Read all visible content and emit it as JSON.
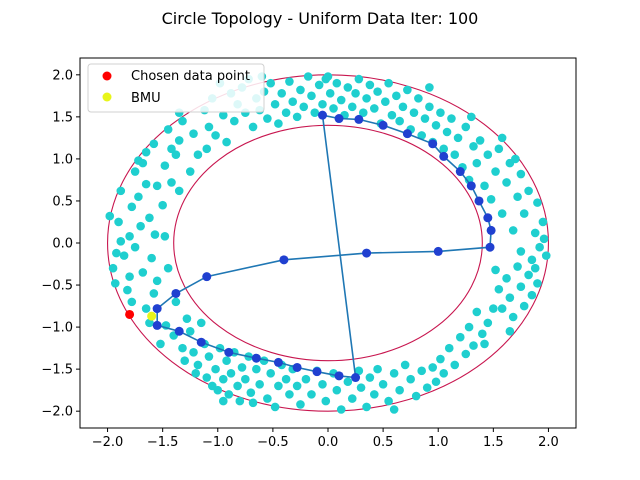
{
  "chart_data": {
    "type": "scatter",
    "title": "Circle Topology - Uniform Data Iter: 100",
    "xlabel": "",
    "ylabel": "",
    "xlim": [
      -2.25,
      2.25
    ],
    "ylim": [
      -2.2,
      2.2
    ],
    "xticks": [
      "−2.0",
      "−1.5",
      "−1.0",
      "−0.5",
      "0.0",
      "0.5",
      "1.0",
      "1.5",
      "2.0"
    ],
    "yticks": [
      "2.0",
      "1.5",
      "1.0",
      "0.5",
      "0.0",
      "−0.5",
      "−1.0",
      "−1.5",
      "−2.0"
    ],
    "xtick_values": [
      -2.0,
      -1.5,
      -1.0,
      -0.5,
      0.0,
      0.5,
      1.0,
      1.5,
      2.0
    ],
    "ytick_values": [
      2.0,
      1.5,
      1.0,
      0.5,
      0.0,
      -0.5,
      -1.0,
      -1.5,
      -2.0
    ],
    "grid": false,
    "legend": {
      "position": "top-left",
      "entries": [
        {
          "label": "Chosen data point",
          "color": "#ff0000"
        },
        {
          "label": "BMU",
          "color": "#e8f51a"
        }
      ]
    },
    "colors": {
      "data": "#1fcfcf",
      "neurons": "#2040d0",
      "network_line": "#1f77b4",
      "boundary": "#c8164f"
    },
    "boundaries": [
      {
        "name": "outer",
        "center": [
          0,
          0
        ],
        "rx": 2.0,
        "ry": 2.0
      },
      {
        "name": "inner",
        "center": [
          0,
          0
        ],
        "rx": 1.4,
        "ry": 1.4
      }
    ],
    "chosen_point": [
      -1.8,
      -0.85
    ],
    "bmu": [
      -1.6,
      -0.87
    ],
    "data_points": [
      [
        -1.98,
        0.32
      ],
      [
        -1.95,
        -0.3
      ],
      [
        -1.93,
        -0.48
      ],
      [
        -1.9,
        0.25
      ],
      [
        -1.88,
        0.02
      ],
      [
        -1.85,
        -0.15
      ],
      [
        -1.82,
        -0.56
      ],
      [
        -1.8,
        0.08
      ],
      [
        -1.78,
        -0.7
      ],
      [
        -1.78,
        0.43
      ],
      [
        -1.75,
        -0.05
      ],
      [
        -1.72,
        0.55
      ],
      [
        -1.7,
        0.2
      ],
      [
        -1.68,
        -0.35
      ],
      [
        -1.65,
        0.7
      ],
      [
        -1.65,
        -0.78
      ],
      [
        -1.62,
        0.3
      ],
      [
        -1.6,
        -0.18
      ],
      [
        -1.58,
        -0.6
      ],
      [
        -1.57,
        0.1
      ],
      [
        -1.55,
        0.68
      ],
      [
        -1.55,
        -0.45
      ],
      [
        -1.52,
        -1.2
      ],
      [
        -1.5,
        0.45
      ],
      [
        -1.48,
        0.08
      ],
      [
        -1.47,
        -0.98
      ],
      [
        -1.45,
        -0.3
      ],
      [
        -1.42,
        0.72
      ],
      [
        -1.4,
        -1.1
      ],
      [
        -1.38,
        -0.7
      ],
      [
        -1.35,
        1.22
      ],
      [
        -1.35,
        0.62
      ],
      [
        -1.32,
        -1.25
      ],
      [
        -1.3,
        -1.4
      ],
      [
        -1.28,
        -0.9
      ],
      [
        -1.25,
        -1.05
      ],
      [
        -1.22,
        -1.3
      ],
      [
        -1.2,
        -1.55
      ],
      [
        -1.18,
        -1.45
      ],
      [
        -1.15,
        -0.95
      ],
      [
        -1.12,
        -1.2
      ],
      [
        -1.1,
        -1.6
      ],
      [
        -1.08,
        -1.35
      ],
      [
        -1.05,
        -1.7
      ],
      [
        -1.02,
        -1.5
      ],
      [
        -1.0,
        -1.75
      ],
      [
        -0.98,
        -1.25
      ],
      [
        -0.95,
        -1.62
      ],
      [
        -0.92,
        -1.4
      ],
      [
        -0.9,
        -1.8
      ],
      [
        -0.88,
        -1.55
      ],
      [
        -0.85,
        -1.3
      ],
      [
        -0.82,
        -1.7
      ],
      [
        -0.8,
        -1.88
      ],
      [
        -0.78,
        -1.48
      ],
      [
        -0.75,
        -1.62
      ],
      [
        -0.72,
        -1.35
      ],
      [
        -0.7,
        -1.78
      ],
      [
        -0.68,
        -1.9
      ],
      [
        -0.65,
        -1.5
      ],
      [
        -0.62,
        -1.68
      ],
      [
        -0.58,
        -1.4
      ],
      [
        -0.55,
        -1.85
      ],
      [
        -0.52,
        -1.55
      ],
      [
        -0.48,
        -1.95
      ],
      [
        -0.45,
        -1.7
      ],
      [
        -0.42,
        -1.45
      ],
      [
        -0.38,
        -1.62
      ],
      [
        -0.35,
        -1.8
      ],
      [
        -0.32,
        -1.5
      ],
      [
        -1.72,
        0.98
      ],
      [
        -1.68,
        0.95
      ],
      [
        -1.58,
        1.18
      ],
      [
        -1.48,
        0.92
      ],
      [
        -1.45,
        1.35
      ],
      [
        -1.38,
        1.05
      ],
      [
        -1.35,
        1.55
      ],
      [
        -1.32,
        1.45
      ],
      [
        -1.25,
        0.85
      ],
      [
        -1.22,
        1.3
      ],
      [
        -1.18,
        1.05
      ],
      [
        -1.12,
        1.58
      ],
      [
        -1.1,
        1.12
      ],
      [
        -1.08,
        1.38
      ],
      [
        -1.05,
        1.72
      ],
      [
        -1.02,
        1.28
      ],
      [
        -0.98,
        1.9
      ],
      [
        -0.95,
        1.52
      ],
      [
        -0.92,
        1.2
      ],
      [
        -0.88,
        1.78
      ],
      [
        -0.85,
        1.45
      ],
      [
        -0.82,
        1.65
      ],
      [
        -0.78,
        1.85
      ],
      [
        -0.75,
        1.55
      ],
      [
        -0.72,
        1.95
      ],
      [
        -0.68,
        1.38
      ],
      [
        -0.65,
        1.72
      ],
      [
        -0.62,
        1.58
      ],
      [
        -0.58,
        1.8
      ],
      [
        -0.55,
        1.48
      ],
      [
        -0.52,
        1.9
      ],
      [
        -0.48,
        1.65
      ],
      [
        -0.45,
        1.42
      ],
      [
        -0.42,
        1.78
      ],
      [
        -0.38,
        1.55
      ],
      [
        -0.35,
        1.92
      ],
      [
        -0.32,
        1.68
      ],
      [
        -0.28,
        1.5
      ],
      [
        -0.25,
        1.82
      ],
      [
        -0.22,
        1.62
      ],
      [
        -0.18,
        1.98
      ],
      [
        -0.15,
        1.75
      ],
      [
        -0.12,
        1.55
      ],
      [
        -0.08,
        1.88
      ],
      [
        -0.05,
        1.65
      ],
      [
        -0.02,
        1.95
      ],
      [
        0.02,
        1.78
      ],
      [
        0.05,
        1.6
      ],
      [
        0.08,
        1.9
      ],
      [
        0.12,
        1.7
      ],
      [
        0.15,
        1.52
      ],
      [
        0.18,
        1.85
      ],
      [
        0.22,
        1.62
      ],
      [
        0.25,
        1.78
      ],
      [
        0.28,
        1.95
      ],
      [
        0.32,
        1.55
      ],
      [
        0.35,
        1.72
      ],
      [
        0.38,
        1.88
      ],
      [
        0.42,
        1.6
      ],
      [
        0.45,
        1.8
      ],
      [
        0.48,
        1.42
      ],
      [
        0.52,
        1.68
      ],
      [
        0.55,
        1.9
      ],
      [
        0.58,
        1.52
      ],
      [
        0.62,
        1.75
      ],
      [
        0.65,
        1.45
      ],
      [
        0.68,
        1.62
      ],
      [
        0.72,
        1.82
      ],
      [
        0.75,
        1.35
      ],
      [
        0.78,
        1.55
      ],
      [
        0.82,
        1.72
      ],
      [
        0.85,
        1.28
      ],
      [
        0.88,
        1.48
      ],
      [
        0.92,
        1.62
      ],
      [
        0.95,
        1.2
      ],
      [
        0.98,
        1.4
      ],
      [
        1.02,
        1.55
      ],
      [
        1.05,
        1.12
      ],
      [
        1.08,
        1.32
      ],
      [
        1.12,
        1.48
      ],
      [
        1.15,
        1.05
      ],
      [
        1.18,
        1.25
      ],
      [
        1.22,
        0.9
      ],
      [
        1.25,
        1.38
      ],
      [
        1.28,
        0.75
      ],
      [
        1.32,
        1.15
      ],
      [
        1.35,
        0.95
      ],
      [
        1.38,
        1.22
      ],
      [
        1.42,
        0.68
      ],
      [
        1.45,
        1.05
      ],
      [
        1.48,
        0.52
      ],
      [
        1.52,
        0.85
      ],
      [
        1.55,
        1.12
      ],
      [
        1.58,
        0.35
      ],
      [
        1.62,
        0.72
      ],
      [
        1.65,
        0.95
      ],
      [
        1.68,
        0.15
      ],
      [
        1.72,
        0.55
      ],
      [
        1.75,
        -0.1
      ],
      [
        1.78,
        0.35
      ],
      [
        1.82,
        0.62
      ],
      [
        1.85,
        -0.2
      ],
      [
        1.88,
        0.12
      ],
      [
        1.9,
        0.48
      ],
      [
        1.92,
        -0.05
      ],
      [
        1.95,
        0.25
      ],
      [
        1.98,
        -0.15
      ],
      [
        1.52,
        -0.32
      ],
      [
        1.55,
        -0.55
      ],
      [
        1.58,
        -0.78
      ],
      [
        1.62,
        -0.42
      ],
      [
        1.65,
        -0.65
      ],
      [
        1.68,
        -0.88
      ],
      [
        1.72,
        -0.28
      ],
      [
        1.75,
        -0.52
      ],
      [
        1.78,
        -0.75
      ],
      [
        1.82,
        -0.38
      ],
      [
        1.85,
        -0.62
      ],
      [
        1.88,
        -0.3
      ],
      [
        1.5,
        -0.78
      ],
      [
        1.45,
        -0.95
      ],
      [
        1.4,
        -1.08
      ],
      [
        1.35,
        -0.82
      ],
      [
        1.32,
        -1.22
      ],
      [
        1.28,
        -1.0
      ],
      [
        1.25,
        -1.32
      ],
      [
        1.2,
        -1.12
      ],
      [
        1.15,
        -1.45
      ],
      [
        1.1,
        -1.25
      ],
      [
        1.05,
        -1.55
      ],
      [
        1.02,
        -1.38
      ],
      [
        0.98,
        -1.65
      ],
      [
        0.95,
        -1.48
      ],
      [
        0.9,
        -1.72
      ],
      [
        0.85,
        -1.52
      ],
      [
        0.8,
        -1.82
      ],
      [
        0.75,
        -1.62
      ],
      [
        0.7,
        -1.45
      ],
      [
        0.65,
        -1.75
      ],
      [
        0.6,
        -1.55
      ],
      [
        0.55,
        -1.88
      ],
      [
        0.5,
        -1.68
      ],
      [
        0.45,
        -1.5
      ],
      [
        0.42,
        -1.8
      ],
      [
        0.38,
        -1.6
      ],
      [
        0.35,
        -1.95
      ],
      [
        0.3,
        -1.72
      ],
      [
        0.28,
        -1.52
      ],
      [
        0.22,
        -1.85
      ],
      [
        0.18,
        -1.65
      ],
      [
        0.12,
        -1.98
      ],
      [
        0.08,
        -1.75
      ],
      [
        0.05,
        -1.55
      ],
      [
        -0.02,
        -1.88
      ],
      [
        -0.05,
        -1.68
      ],
      [
        -0.1,
        -1.52
      ],
      [
        -0.15,
        -1.8
      ],
      [
        -0.2,
        -1.62
      ],
      [
        -0.25,
        -1.92
      ],
      [
        -0.28,
        -1.7
      ],
      [
        1.7,
        1.0
      ],
      [
        1.58,
        1.25
      ],
      [
        1.3,
        1.5
      ],
      [
        -1.88,
        0.62
      ],
      [
        -1.8,
        -0.4
      ],
      [
        -1.62,
        -0.95
      ],
      [
        1.9,
        -0.48
      ],
      [
        1.75,
        0.82
      ],
      [
        -0.6,
        1.98
      ],
      [
        0.6,
        -1.98
      ],
      [
        -1.75,
        0.85
      ],
      [
        -1.92,
        -0.12
      ],
      [
        1.96,
        0.05
      ],
      [
        1.42,
        -1.2
      ],
      [
        -1.42,
        1.12
      ],
      [
        0.92,
        1.85
      ],
      [
        -0.95,
        -1.88
      ],
      [
        1.65,
        -1.05
      ],
      [
        -1.65,
        1.08
      ],
      [
        0.0,
        1.98
      ]
    ],
    "neurons": [
      [
        -0.05,
        1.52
      ],
      [
        0.1,
        1.48
      ],
      [
        0.28,
        1.47
      ],
      [
        0.5,
        1.4
      ],
      [
        0.72,
        1.3
      ],
      [
        0.95,
        1.18
      ],
      [
        1.05,
        1.03
      ],
      [
        1.2,
        0.85
      ],
      [
        1.3,
        0.68
      ],
      [
        1.37,
        0.5
      ],
      [
        1.45,
        0.3
      ],
      [
        1.48,
        0.15
      ],
      [
        1.47,
        -0.05
      ],
      [
        1.0,
        -0.1
      ],
      [
        0.35,
        -0.12
      ],
      [
        -0.4,
        -0.2
      ],
      [
        -1.1,
        -0.4
      ],
      [
        -1.38,
        -0.6
      ],
      [
        -1.55,
        -0.78
      ],
      [
        -1.55,
        -0.98
      ],
      [
        -1.35,
        -1.05
      ],
      [
        -1.15,
        -1.18
      ],
      [
        -0.9,
        -1.3
      ],
      [
        -0.65,
        -1.37
      ],
      [
        -0.45,
        -1.42
      ],
      [
        -0.28,
        -1.48
      ],
      [
        -0.1,
        -1.53
      ],
      [
        0.1,
        -1.58
      ],
      [
        0.25,
        -1.6
      ]
    ],
    "network_path_order": "ring"
  }
}
